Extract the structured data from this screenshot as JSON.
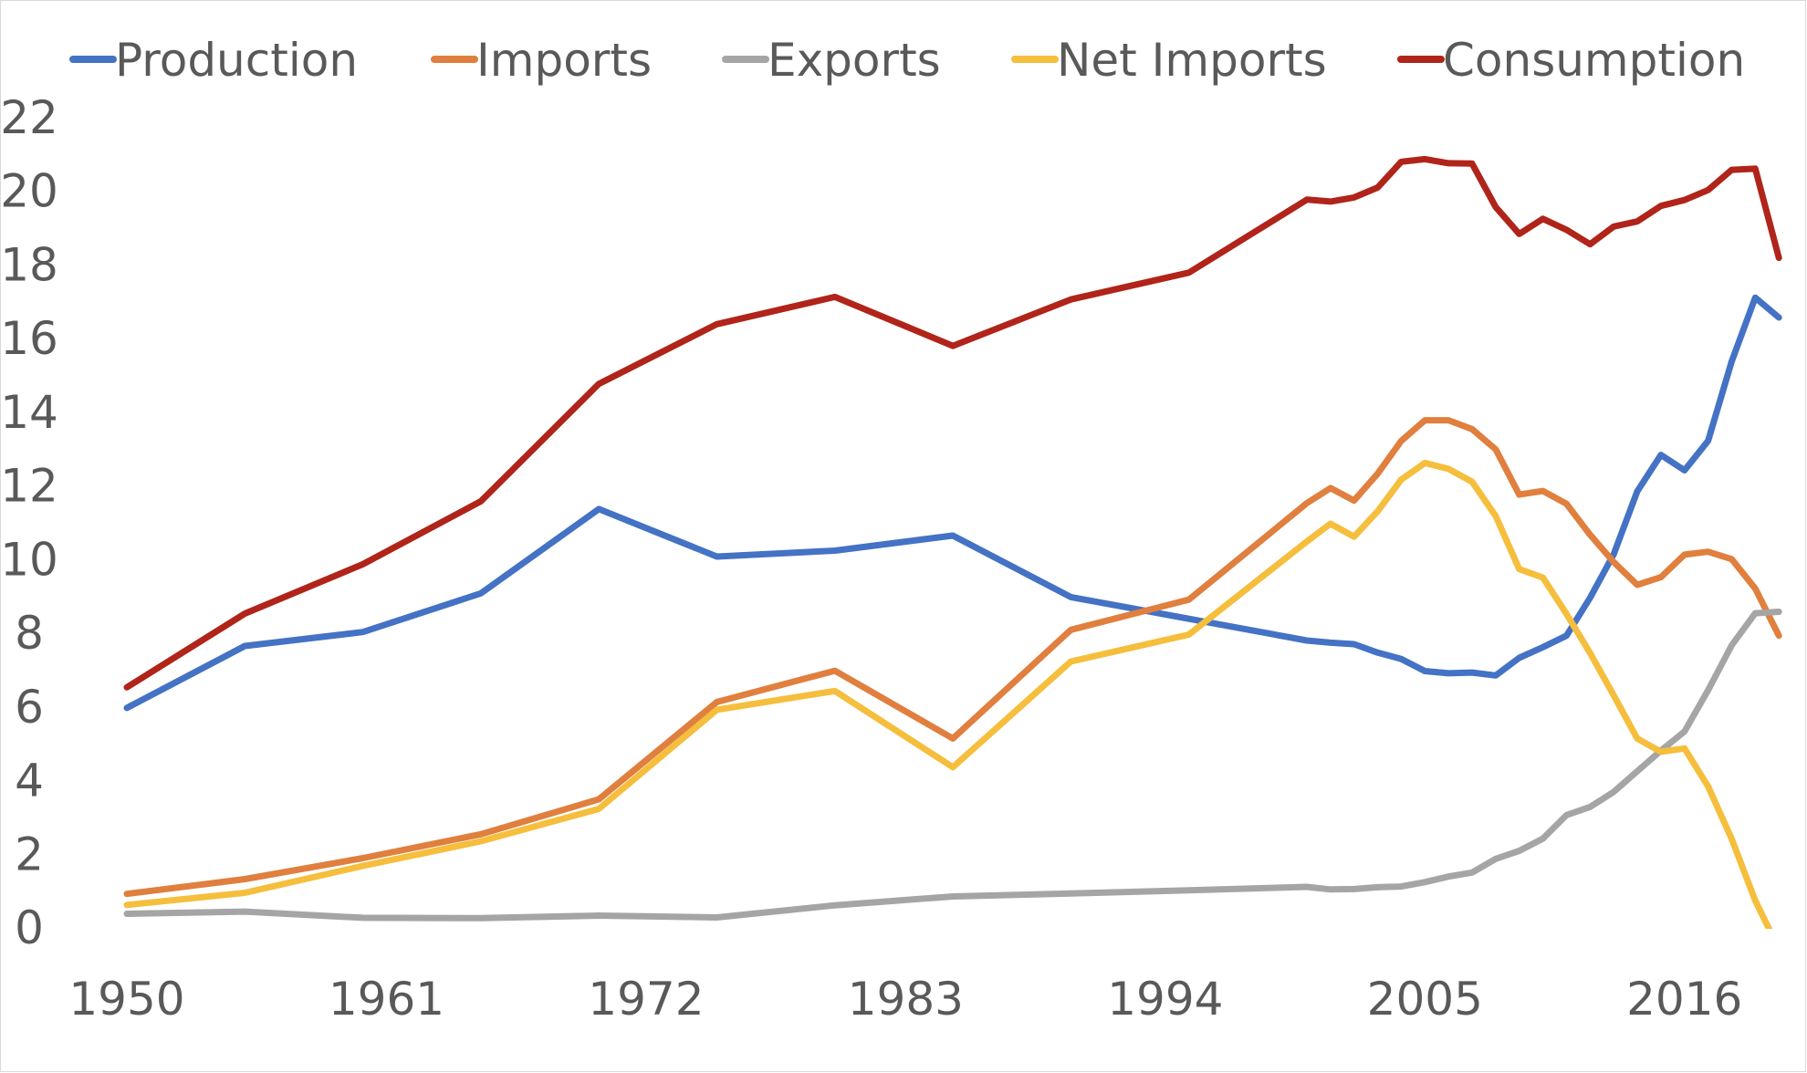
{
  "chart_data": {
    "type": "line",
    "title": "",
    "xlabel": "",
    "ylabel": "",
    "ylim": [
      0,
      22
    ],
    "xlim": [
      1950,
      2020
    ],
    "grid": false,
    "legend_position": "top",
    "y_ticks": [
      "0",
      "2",
      "4",
      "6",
      "8",
      "10",
      "12",
      "14",
      "16",
      "18",
      "20",
      "22"
    ],
    "x_ticks": [
      "1950",
      "1961",
      "1972",
      "1983",
      "1994",
      "2005",
      "2016"
    ],
    "x": [
      1950,
      1955,
      1960,
      1965,
      1970,
      1975,
      1980,
      1985,
      1990,
      1995,
      2000,
      2001,
      2002,
      2003,
      2004,
      2005,
      2006,
      2007,
      2008,
      2009,
      2010,
      2011,
      2012,
      2013,
      2014,
      2015,
      2016,
      2017,
      2018,
      2019,
      2020
    ],
    "series": [
      {
        "name": "Production",
        "color": "#4472C4",
        "values": [
          5.9,
          7.58,
          7.96,
          9.01,
          11.3,
          10.01,
          10.17,
          10.58,
          8.91,
          8.32,
          7.73,
          7.67,
          7.63,
          7.4,
          7.23,
          6.9,
          6.84,
          6.86,
          6.78,
          7.26,
          7.55,
          7.86,
          8.89,
          10.07,
          11.78,
          12.77,
          12.35,
          13.15,
          15.31,
          17.04,
          16.5
        ]
      },
      {
        "name": "Imports",
        "color": "#E07F3E",
        "values": [
          0.85,
          1.25,
          1.82,
          2.47,
          3.42,
          6.06,
          6.91,
          5.07,
          8.02,
          8.84,
          11.46,
          11.87,
          11.53,
          12.26,
          13.15,
          13.71,
          13.71,
          13.47,
          12.92,
          11.69,
          11.79,
          11.44,
          10.6,
          9.86,
          9.24,
          9.45,
          10.06,
          10.14,
          9.94,
          9.14,
          7.86
        ]
      },
      {
        "name": "Exports",
        "color": "#A5A5A5",
        "values": [
          0.31,
          0.37,
          0.2,
          0.19,
          0.26,
          0.21,
          0.54,
          0.78,
          0.86,
          0.95,
          1.04,
          0.97,
          0.98,
          1.03,
          1.05,
          1.17,
          1.32,
          1.43,
          1.8,
          2.02,
          2.35,
          2.99,
          3.21,
          3.62,
          4.18,
          4.74,
          5.26,
          6.38,
          7.6,
          8.47,
          8.51
        ]
      },
      {
        "name": "Net Imports",
        "color": "#F5BE3C",
        "values": [
          0.55,
          0.88,
          1.61,
          2.28,
          3.16,
          5.85,
          6.36,
          4.29,
          7.16,
          7.89,
          10.42,
          10.9,
          10.55,
          11.24,
          12.1,
          12.55,
          12.39,
          12.04,
          11.11,
          9.67,
          9.44,
          8.45,
          7.39,
          6.24,
          5.07,
          4.71,
          4.8,
          3.77,
          2.34,
          0.67,
          -0.65
        ]
      },
      {
        "name": "Consumption",
        "color": "#B0241A",
        "values": [
          6.46,
          8.46,
          9.8,
          11.51,
          14.7,
          16.32,
          17.06,
          15.73,
          16.99,
          17.72,
          19.7,
          19.65,
          19.76,
          20.03,
          20.73,
          20.8,
          20.69,
          20.68,
          19.5,
          18.77,
          19.18,
          18.88,
          18.49,
          18.97,
          19.11,
          19.53,
          19.69,
          19.96,
          20.51,
          20.54,
          18.12
        ]
      }
    ]
  }
}
